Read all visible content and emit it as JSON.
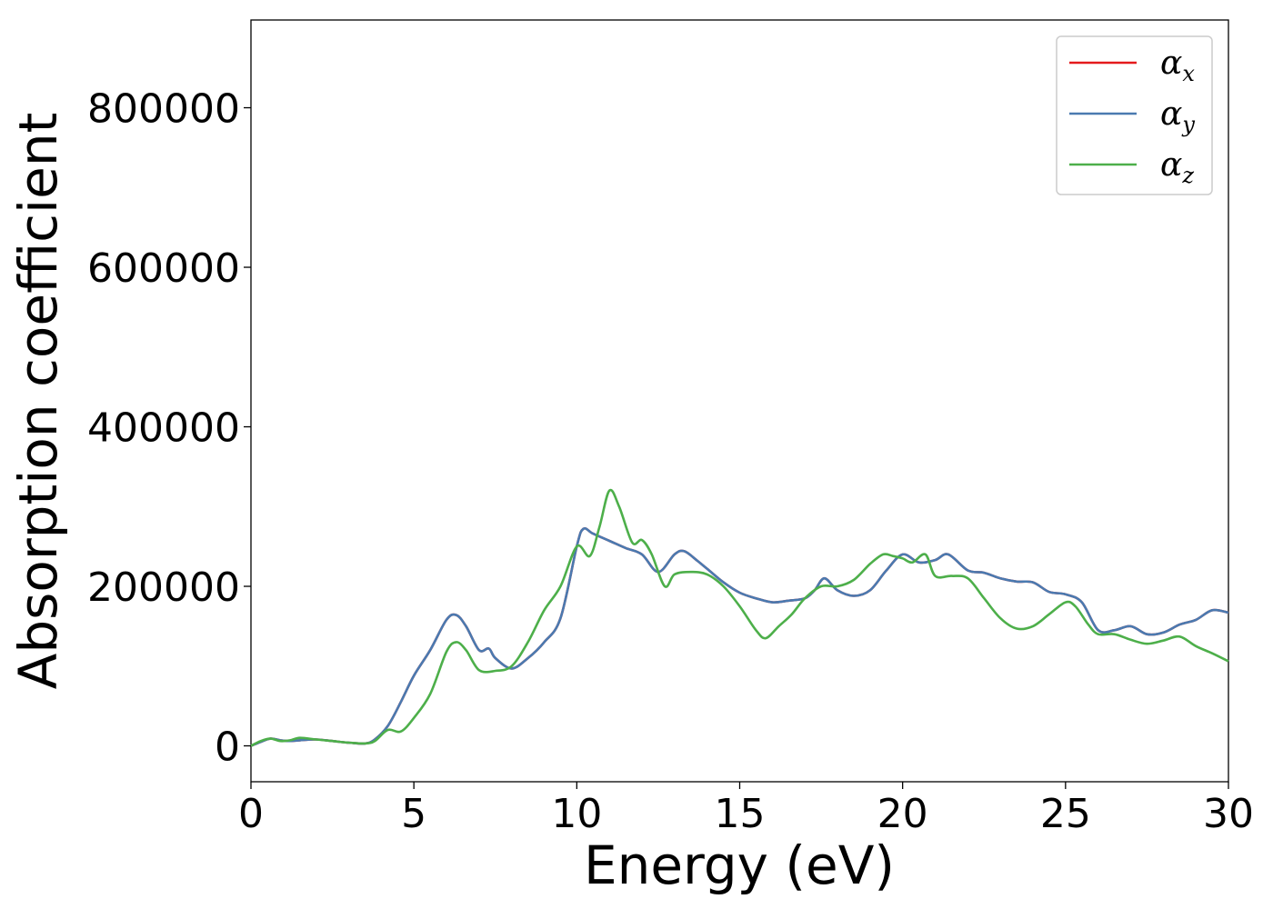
{
  "chart_data": {
    "type": "line",
    "xlabel": "Energy (eV)",
    "ylabel": "Absorption coefficient",
    "xlim": [
      0,
      30
    ],
    "ylim": [
      -45000,
      910000
    ],
    "xticks": [
      "0",
      "5",
      "10",
      "15",
      "20",
      "25",
      "30"
    ],
    "yticks": [
      "0",
      "200000",
      "400000",
      "600000",
      "800000"
    ],
    "grid": false,
    "legend_position": "top-right",
    "series": [
      {
        "name": "αx",
        "symbol": "α",
        "subscript": "x",
        "color": "#e41a1c",
        "x": [
          0,
          0.3,
          0.6,
          0.9,
          1.2,
          1.5,
          2.0,
          2.5,
          3.0,
          3.5,
          3.8,
          4.2,
          4.6,
          5.0,
          5.5,
          6.0,
          6.3,
          6.6,
          7.0,
          7.3,
          7.5,
          8.0,
          8.5,
          9.0,
          9.5,
          10.0,
          10.2,
          10.5,
          11.0,
          11.5,
          12.0,
          12.5,
          13.0,
          13.3,
          13.7,
          14.0,
          14.5,
          15.0,
          15.5,
          16.0,
          16.5,
          17.0,
          17.3,
          17.6,
          18.0,
          18.5,
          19.0,
          19.5,
          20.0,
          20.5,
          21.0,
          21.4,
          22.0,
          22.5,
          23.0,
          23.5,
          24.0,
          24.5,
          25.0,
          25.5,
          26.0,
          26.5,
          27.0,
          27.5,
          28.0,
          28.5,
          29.0,
          29.5,
          30.0
        ],
        "y": [
          0,
          5000,
          9000,
          7000,
          6000,
          7000,
          8000,
          6000,
          4000,
          3000,
          8000,
          25000,
          55000,
          88000,
          120000,
          158000,
          164000,
          150000,
          120000,
          122000,
          110000,
          97000,
          110000,
          130000,
          160000,
          250000,
          272000,
          266000,
          257000,
          248000,
          240000,
          218000,
          240000,
          244000,
          232000,
          222000,
          205000,
          192000,
          185000,
          180000,
          182000,
          185000,
          195000,
          210000,
          195000,
          188000,
          195000,
          220000,
          240000,
          230000,
          233000,
          240000,
          220000,
          217000,
          210000,
          206000,
          205000,
          193000,
          190000,
          180000,
          145000,
          145000,
          150000,
          140000,
          142000,
          152000,
          158000,
          170000,
          167000
        ]
      },
      {
        "name": "αy",
        "symbol": "α",
        "subscript": "y",
        "color": "#4a7ab0",
        "x": [
          0,
          0.3,
          0.6,
          0.9,
          1.2,
          1.5,
          2.0,
          2.5,
          3.0,
          3.5,
          3.8,
          4.2,
          4.6,
          5.0,
          5.5,
          6.0,
          6.3,
          6.6,
          7.0,
          7.3,
          7.5,
          8.0,
          8.5,
          9.0,
          9.5,
          10.0,
          10.2,
          10.5,
          11.0,
          11.5,
          12.0,
          12.5,
          13.0,
          13.3,
          13.7,
          14.0,
          14.5,
          15.0,
          15.5,
          16.0,
          16.5,
          17.0,
          17.3,
          17.6,
          18.0,
          18.5,
          19.0,
          19.5,
          20.0,
          20.5,
          21.0,
          21.4,
          22.0,
          22.5,
          23.0,
          23.5,
          24.0,
          24.5,
          25.0,
          25.5,
          26.0,
          26.5,
          27.0,
          27.5,
          28.0,
          28.5,
          29.0,
          29.5,
          30.0
        ],
        "y": [
          0,
          5000,
          9000,
          7000,
          6000,
          7000,
          8000,
          6000,
          4000,
          3000,
          8000,
          25000,
          55000,
          88000,
          120000,
          158000,
          164000,
          150000,
          120000,
          122000,
          110000,
          97000,
          110000,
          130000,
          160000,
          250000,
          272000,
          266000,
          257000,
          248000,
          240000,
          218000,
          240000,
          244000,
          232000,
          222000,
          205000,
          192000,
          185000,
          180000,
          182000,
          185000,
          195000,
          210000,
          195000,
          188000,
          195000,
          220000,
          240000,
          230000,
          233000,
          240000,
          220000,
          217000,
          210000,
          206000,
          205000,
          193000,
          190000,
          180000,
          145000,
          145000,
          150000,
          140000,
          142000,
          152000,
          158000,
          170000,
          167000
        ]
      },
      {
        "name": "αz",
        "symbol": "α",
        "subscript": "z",
        "color": "#4daf4a",
        "x": [
          0,
          0.3,
          0.6,
          0.9,
          1.2,
          1.5,
          2.0,
          2.5,
          3.0,
          3.5,
          3.8,
          4.2,
          4.6,
          5.0,
          5.5,
          6.0,
          6.3,
          6.6,
          7.0,
          7.5,
          8.0,
          8.5,
          9.0,
          9.5,
          10.0,
          10.4,
          10.7,
          11.0,
          11.3,
          11.7,
          12.0,
          12.3,
          12.7,
          13.0,
          13.5,
          14.0,
          14.5,
          15.0,
          15.5,
          15.8,
          16.2,
          16.6,
          17.0,
          17.5,
          18.0,
          18.5,
          19.0,
          19.4,
          19.7,
          20.0,
          20.3,
          20.7,
          21.0,
          21.5,
          22.0,
          22.5,
          23.0,
          23.5,
          24.0,
          24.5,
          25.0,
          25.3,
          25.7,
          26.0,
          26.5,
          27.0,
          27.5,
          28.0,
          28.5,
          29.0,
          29.5,
          30.0
        ],
        "y": [
          0,
          6000,
          9000,
          6000,
          7000,
          10000,
          8000,
          6000,
          4000,
          3000,
          6000,
          20000,
          18000,
          35000,
          65000,
          118000,
          130000,
          120000,
          95000,
          94000,
          100000,
          130000,
          170000,
          200000,
          250000,
          238000,
          275000,
          320000,
          300000,
          255000,
          258000,
          240000,
          200000,
          215000,
          218000,
          215000,
          200000,
          175000,
          145000,
          135000,
          150000,
          165000,
          185000,
          200000,
          200000,
          208000,
          228000,
          240000,
          238000,
          235000,
          230000,
          240000,
          213000,
          213000,
          210000,
          185000,
          160000,
          147000,
          150000,
          165000,
          180000,
          175000,
          152000,
          140000,
          140000,
          133000,
          128000,
          132000,
          137000,
          125000,
          116000,
          106000
        ]
      }
    ]
  }
}
